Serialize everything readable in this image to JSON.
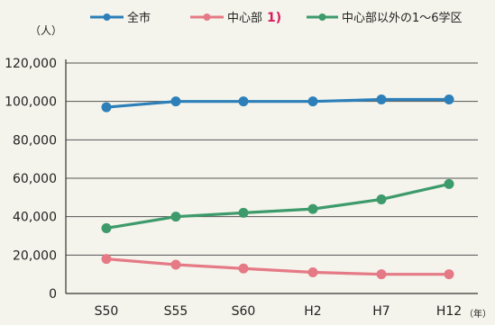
{
  "chart_data": {
    "type": "line",
    "categories": [
      "S50",
      "S55",
      "S60",
      "H2",
      "H7",
      "H12"
    ],
    "series": [
      {
        "name": "全市",
        "values": [
          97000,
          100000,
          100000,
          100000,
          101000,
          101000
        ],
        "color": "#2c7fb8",
        "note": ""
      },
      {
        "name": "中心部",
        "values": [
          18000,
          15000,
          13000,
          11000,
          10000,
          10000
        ],
        "color": "#e57a86",
        "note": "1)"
      },
      {
        "name": "中心部以外の1～6学区",
        "values": [
          34000,
          40000,
          42000,
          44000,
          49000,
          57000
        ],
        "color": "#3d9a6b",
        "note": ""
      }
    ],
    "yticks": [
      "0",
      "20,000",
      "40,000",
      "60,000",
      "80,000",
      "100,000",
      "120,000"
    ],
    "ylim": [
      0,
      120000
    ],
    "yunit": "（人）",
    "xunit": "（年）",
    "grid": true,
    "legend": "top"
  }
}
